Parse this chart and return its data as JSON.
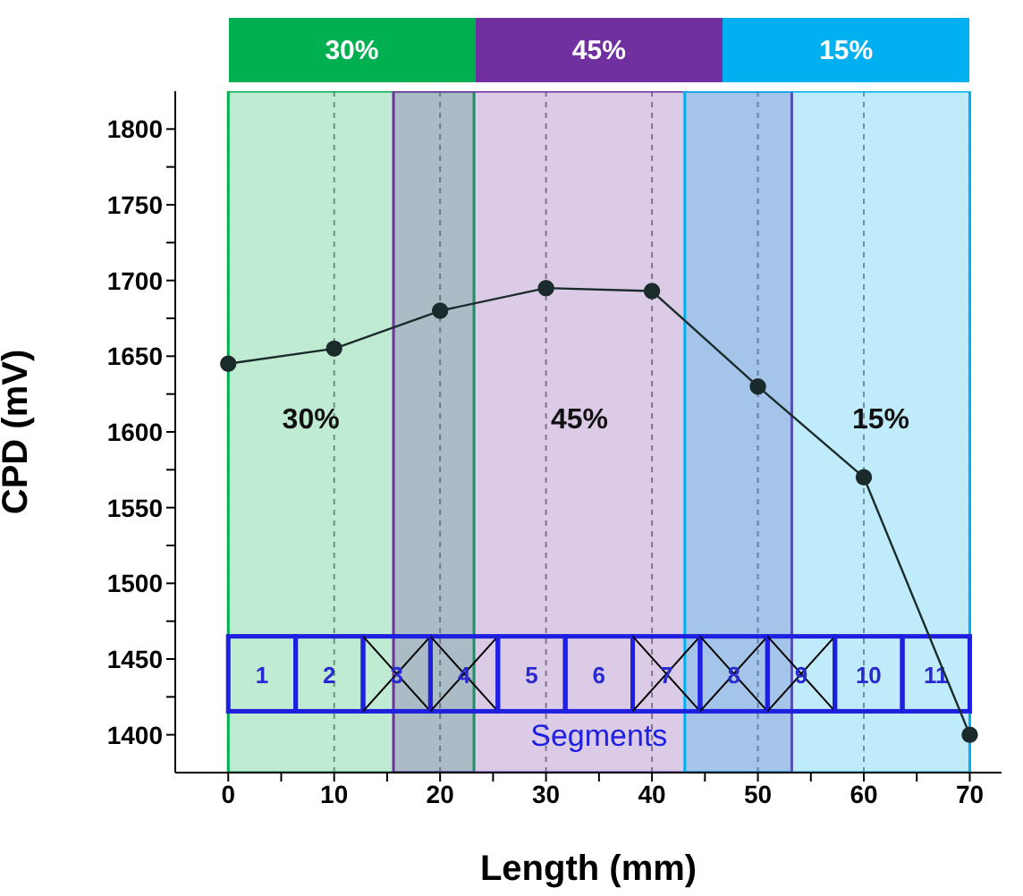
{
  "chart_data": {
    "type": "line",
    "xlabel": "Length (mm)",
    "ylabel": "CPD (mV)",
    "x": [
      0,
      10,
      20,
      30,
      40,
      50,
      60,
      70
    ],
    "series": [
      {
        "color": "#1b2b2b",
        "values": [
          1645,
          1655,
          1680,
          1695,
          1693,
          1630,
          1570,
          1400
        ]
      }
    ],
    "marker": "circle",
    "line_style": "solid",
    "grid": "x",
    "xlim": [
      -5,
      73
    ],
    "xticks": [
      0,
      {
        "value": 5,
        "label": null
      },
      10,
      {
        "value": 15,
        "label": null
      },
      20,
      {
        "value": 25,
        "label": null
      },
      30,
      {
        "value": 35,
        "label": null
      },
      40,
      {
        "value": 45,
        "label": null
      },
      50,
      {
        "value": 55,
        "label": null
      },
      60,
      {
        "value": 65,
        "label": null
      },
      70
    ],
    "ylim": [
      1375,
      1825
    ],
    "yticks": [
      1400,
      {
        "value": 1425,
        "label": null
      },
      1450,
      {
        "value": 1475,
        "label": null
      },
      1500,
      {
        "value": 1525,
        "label": null
      },
      1550,
      {
        "value": 1575,
        "label": null
      },
      1600,
      {
        "value": 1625,
        "label": null
      },
      1650,
      {
        "value": 1675,
        "label": null
      },
      1700,
      {
        "value": 1725,
        "label": null
      },
      1750,
      {
        "value": 1775,
        "label": null
      },
      1800
    ],
    "bands": [
      {
        "axis": "x",
        "from": 0,
        "to": 23.2,
        "label": "30%",
        "color": "#00b050"
      },
      {
        "axis": "x",
        "from": 15.6,
        "to": 53.2,
        "label": "45%",
        "color": "#7030a0"
      },
      {
        "axis": "x",
        "from": 43.1,
        "to": 70,
        "label": "15%",
        "color": "#00b0f0"
      }
    ],
    "annotations": [
      "30%",
      "45%",
      "15%",
      "1",
      "2",
      "3",
      "4",
      "5",
      "6",
      "7",
      "8",
      "9",
      "10",
      "11",
      "Segments"
    ]
  }
}
